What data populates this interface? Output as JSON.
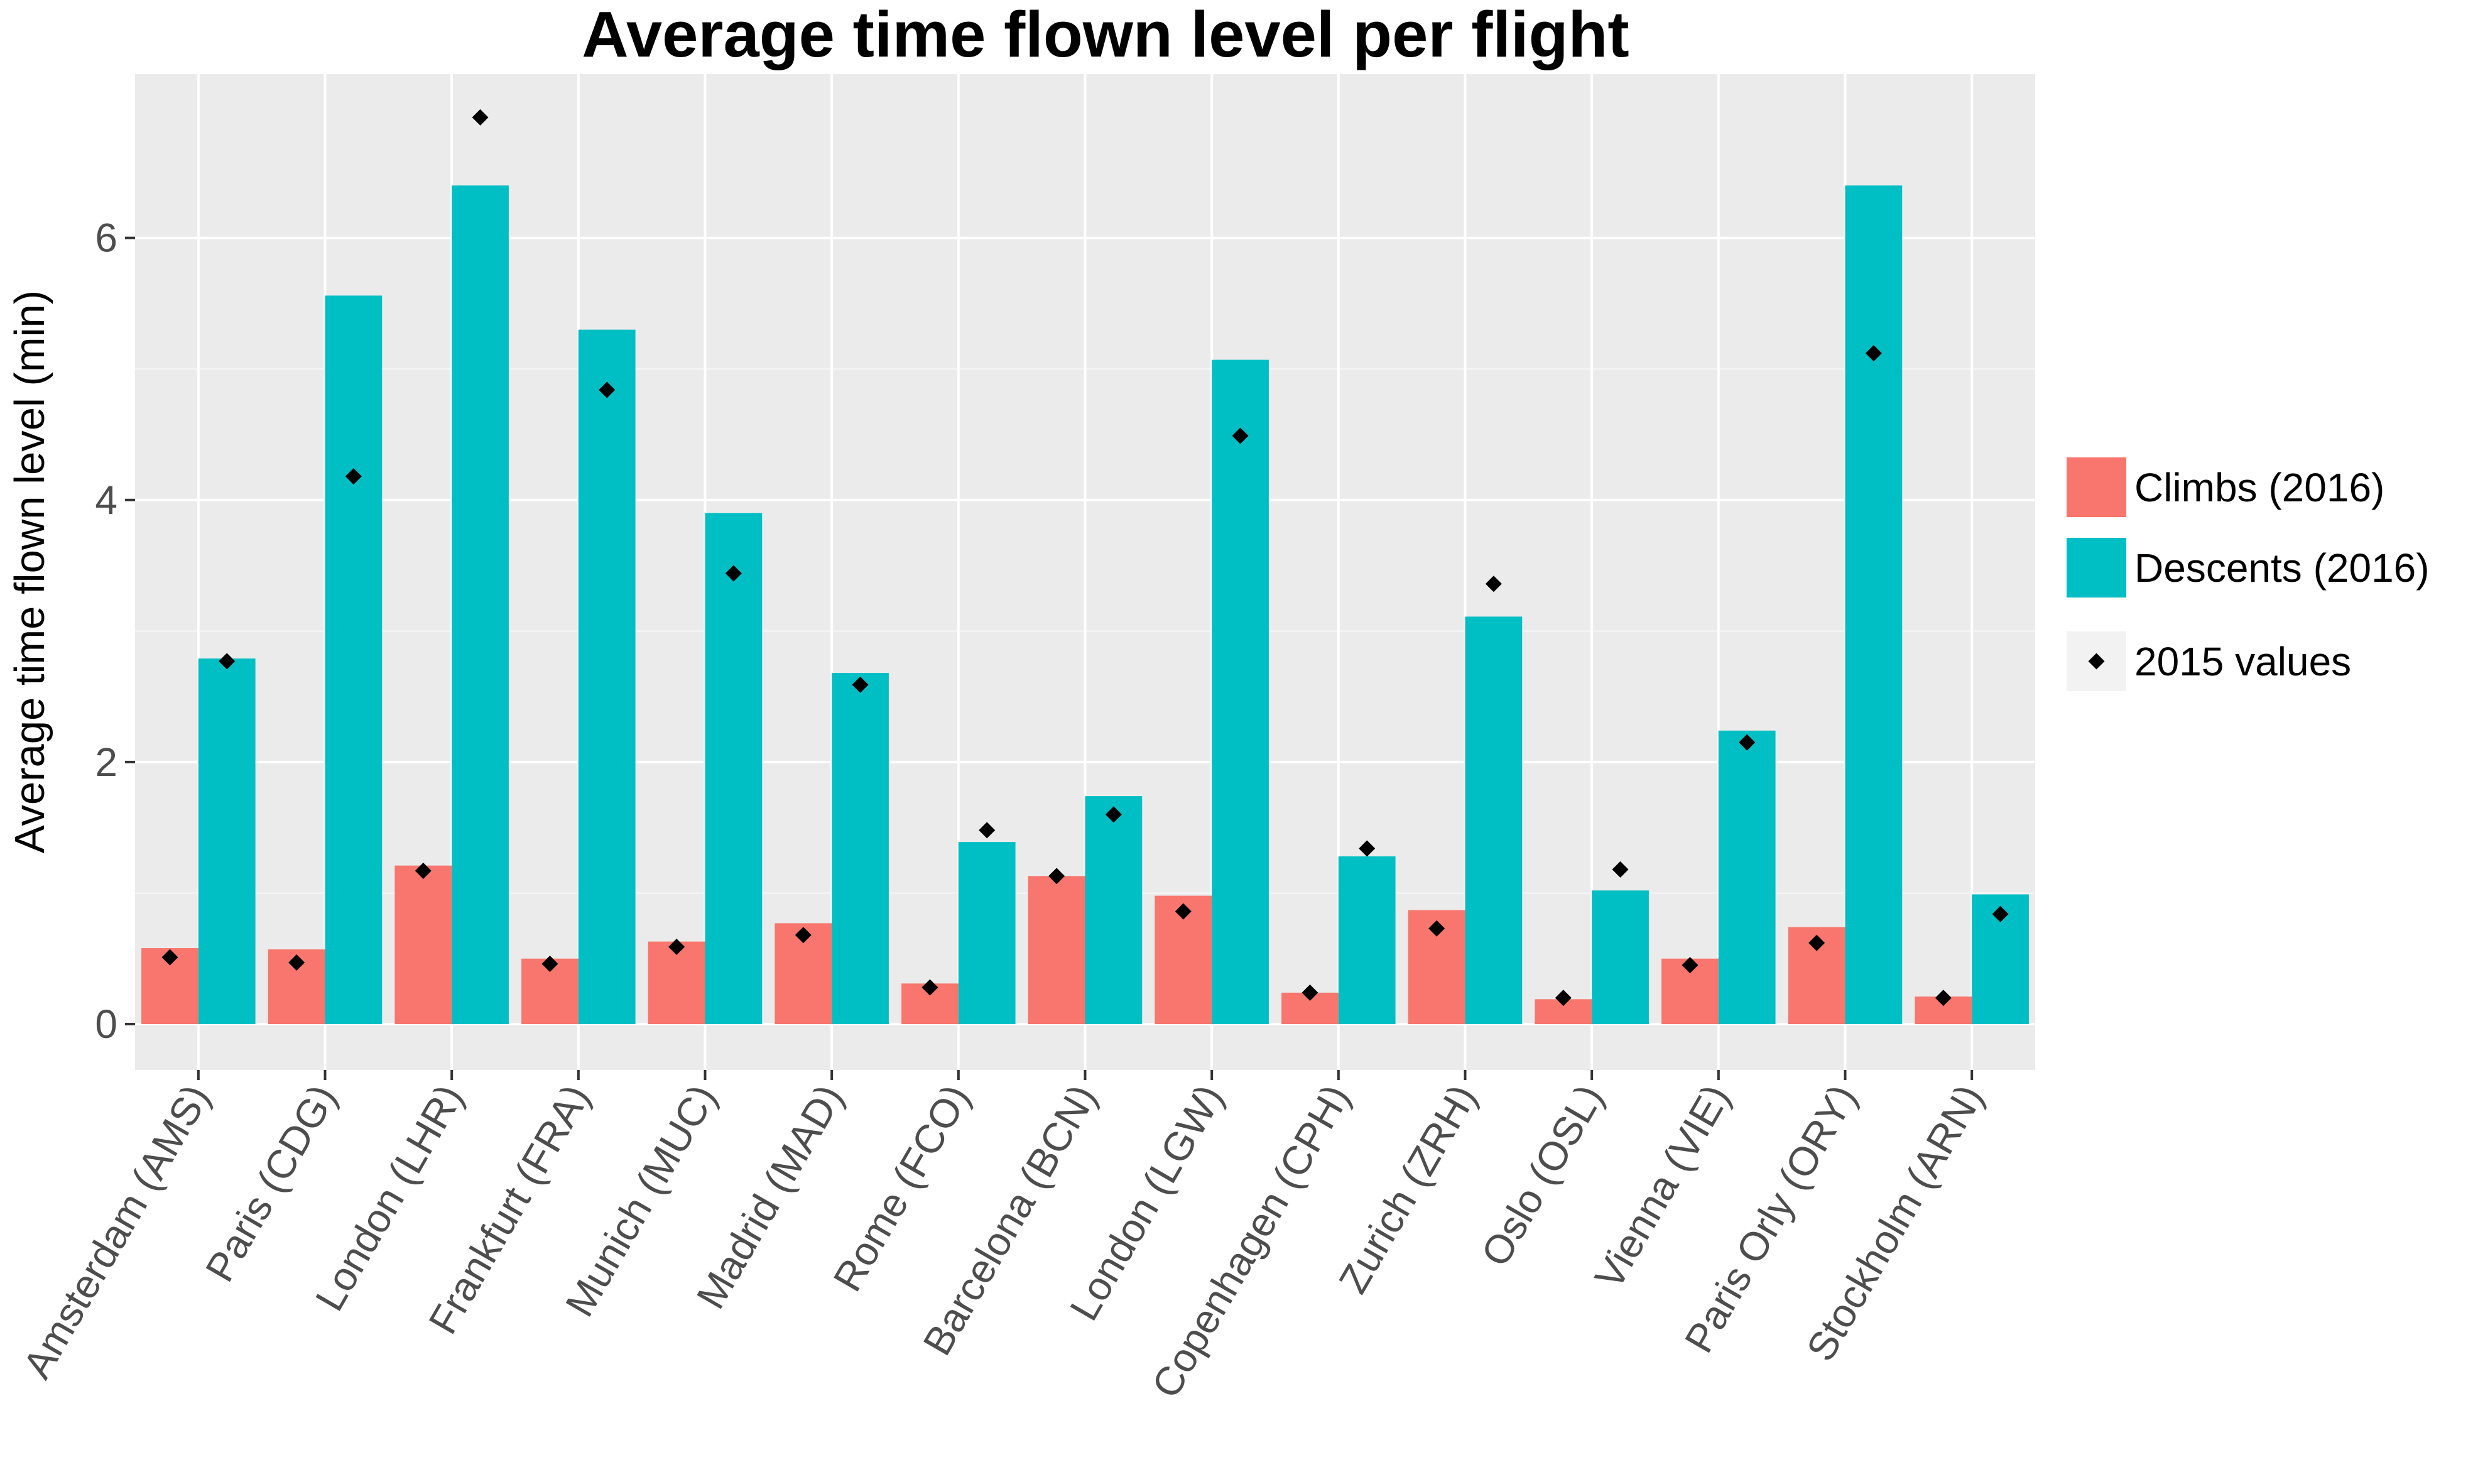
{
  "chart_data": {
    "type": "bar",
    "title": "Average time flown level per flight",
    "xlabel": "",
    "ylabel": "Average time flown level (min)",
    "ylim": [
      -0.35,
      7.25
    ],
    "yticks": [
      0,
      2,
      4,
      6
    ],
    "grid": true,
    "legend_position": "right",
    "categories": [
      "Amsterdam (AMS)",
      "Paris (CDG)",
      "London (LHR)",
      "Frankfurt (FRA)",
      "Munich (MUC)",
      "Madrid (MAD)",
      "Rome (FCO)",
      "Barcelona (BCN)",
      "London (LGW)",
      "Copenhagen (CPH)",
      "Zurich (ZRH)",
      "Oslo (OSL)",
      "Vienna (VIE)",
      "Paris Orly (ORY)",
      "Stockholm (ARN)"
    ],
    "series": [
      {
        "name": "Climbs (2016)",
        "color": "#F8766D",
        "values": [
          0.58,
          0.57,
          1.21,
          0.5,
          0.63,
          0.77,
          0.31,
          1.13,
          0.98,
          0.24,
          0.87,
          0.19,
          0.5,
          0.74,
          0.21
        ],
        "values_2015": [
          0.51,
          0.47,
          1.17,
          0.46,
          0.59,
          0.68,
          0.28,
          1.13,
          0.86,
          0.24,
          0.73,
          0.2,
          0.45,
          0.62,
          0.2
        ]
      },
      {
        "name": "Descents (2016)",
        "color": "#00BFC4",
        "values": [
          2.79,
          5.56,
          6.4,
          5.3,
          3.9,
          2.68,
          1.39,
          1.74,
          5.07,
          1.28,
          3.11,
          1.02,
          2.24,
          6.4,
          0.99
        ],
        "values_2015": [
          2.77,
          4.18,
          6.92,
          4.84,
          3.44,
          2.59,
          1.48,
          1.6,
          4.49,
          1.34,
          3.36,
          1.18,
          2.15,
          5.12,
          0.84
        ]
      }
    ],
    "points_series_name": "2015 values",
    "point_color": "#000000"
  }
}
